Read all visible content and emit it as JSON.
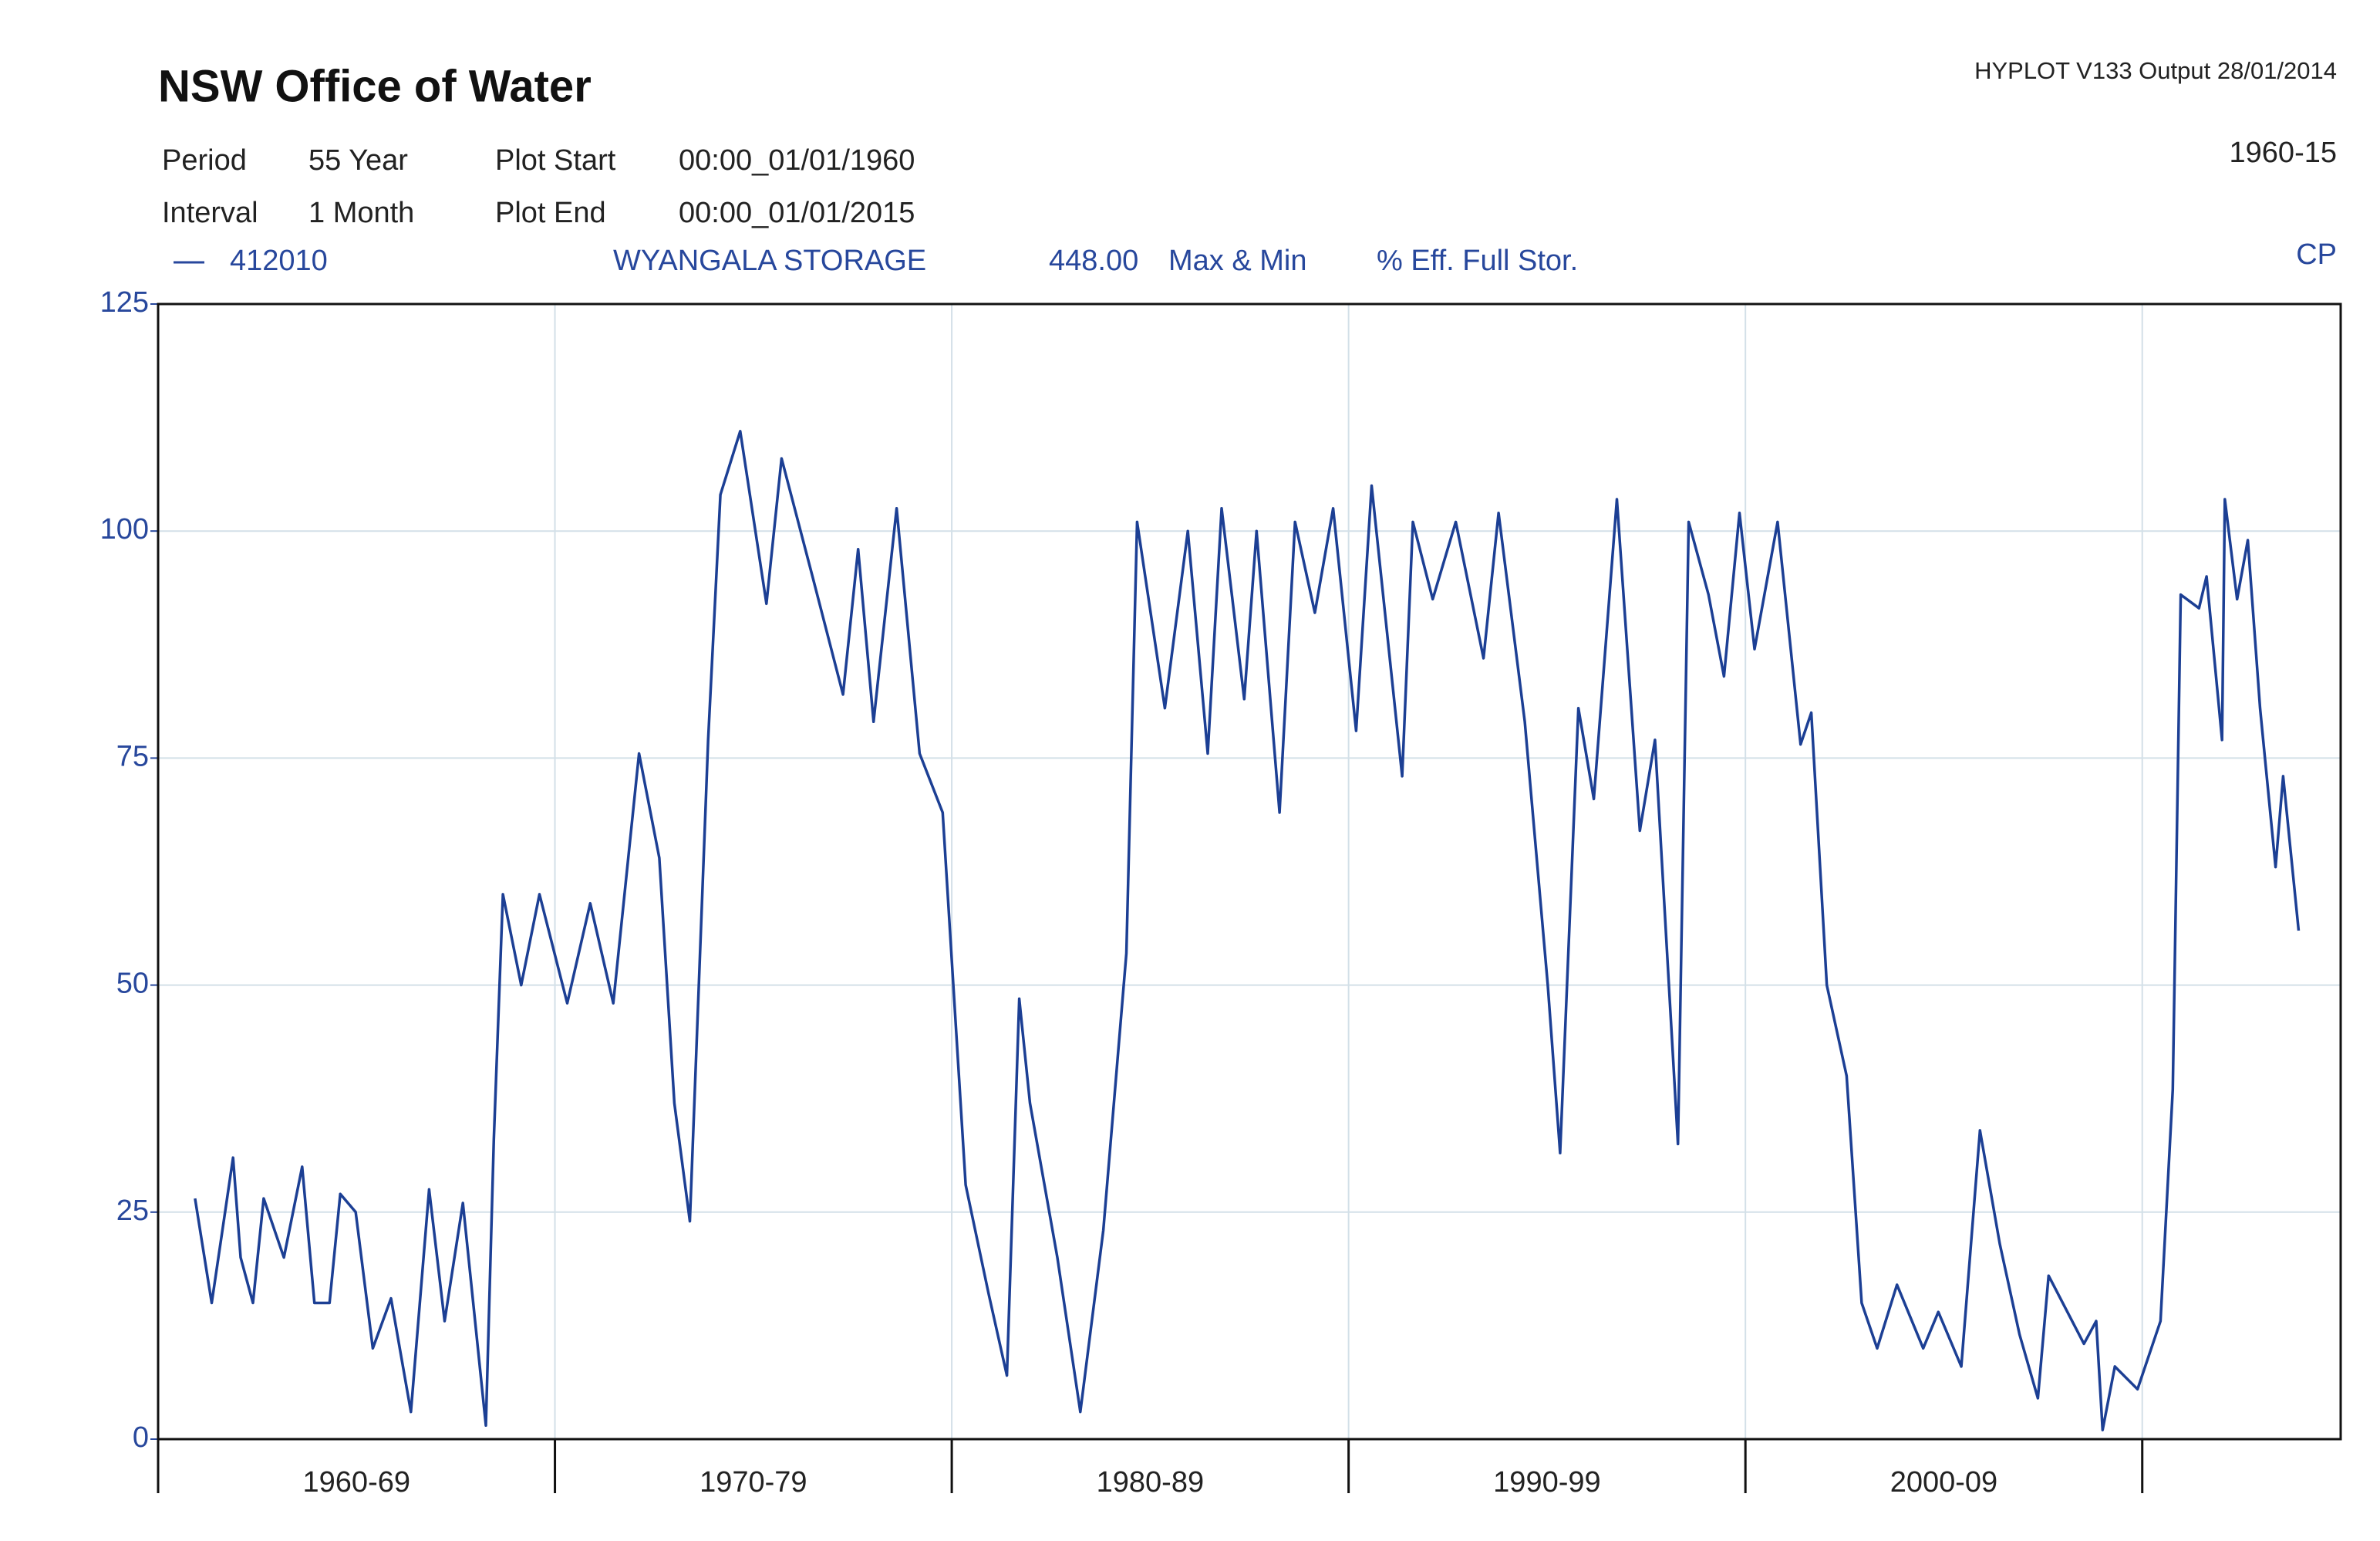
{
  "chart_data": {
    "type": "line",
    "title": "NSW Office of Water",
    "output_note": "HYPLOT V133  Output 28/01/2014",
    "period_code": "1960-15",
    "plot_code": "CP",
    "header": [
      [
        "Period",
        "55 Year",
        "Plot Start",
        "00:00_01/01/1960"
      ],
      [
        "Interval",
        "1 Month",
        "Plot End",
        "00:00_01/01/2015"
      ]
    ],
    "legend_fields": [
      "WYANGALA STORAGE",
      "448.00",
      "Max & Min",
      "% Eff. Full Stor."
    ],
    "x": [
      1960.93,
      1961.35,
      1961.62,
      1961.89,
      1962.08,
      1962.39,
      1962.66,
      1963.17,
      1963.63,
      1963.94,
      1964.32,
      1964.59,
      1964.98,
      1965.41,
      1965.87,
      1966.37,
      1966.83,
      1967.22,
      1967.68,
      1968.26,
      1968.46,
      1968.69,
      1969.15,
      1969.61,
      1970.31,
      1970.89,
      1971.47,
      1972.12,
      1972.63,
      1973.01,
      1973.4,
      1973.86,
      1974.17,
      1974.67,
      1975.33,
      1975.71,
      1976.49,
      1977.26,
      1977.64,
      1978.03,
      1978.61,
      1979.19,
      1979.77,
      1980.35,
      1980.93,
      1981.39,
      1981.7,
      1981.97,
      1982.66,
      1983.24,
      1983.82,
      1984.4,
      1984.67,
      1985.37,
      1985.95,
      1986.45,
      1986.8,
      1987.37,
      1987.68,
      1988.26,
      1988.65,
      1989.15,
      1989.61,
      1990.19,
      1990.58,
      1991.35,
      1991.62,
      1992.12,
      1992.7,
      1993.4,
      1993.78,
      1994.44,
      1995.02,
      1995.33,
      1995.79,
      1996.18,
      1996.76,
      1997.34,
      1997.72,
      1998.3,
      1998.57,
      1999.07,
      1999.46,
      1999.85,
      2000.23,
      2000.81,
      2001.39,
      2001.66,
      2002.05,
      2002.55,
      2002.93,
      2003.32,
      2003.82,
      2004.48,
      2004.86,
      2005.44,
      2005.91,
      2006.41,
      2006.91,
      2007.37,
      2007.64,
      2008.53,
      2008.84,
      2009.0,
      2009.31,
      2009.88,
      2010.46,
      2010.77,
      2010.97,
      2011.43,
      2011.62,
      2012.01,
      2012.08,
      2012.39,
      2012.66,
      2012.97,
      2013.36,
      2013.55,
      2013.94
    ],
    "series": [
      {
        "name": "412010",
        "color": "#1c3f94",
        "values": [
          26.5,
          15,
          23,
          31,
          20,
          15,
          26.5,
          20,
          30,
          15,
          15,
          27,
          25,
          10,
          15.5,
          3,
          27.5,
          13,
          26,
          1.5,
          33,
          60,
          50,
          60,
          48,
          59,
          48,
          75.5,
          64,
          37,
          24,
          77,
          104,
          111,
          92,
          108,
          95,
          82,
          98,
          79,
          102.5,
          75.5,
          69,
          28,
          16,
          7,
          48.5,
          37,
          20,
          3,
          23,
          53.5,
          101,
          80.5,
          100,
          75.5,
          102.5,
          81.5,
          100,
          69,
          101,
          91,
          102.5,
          78,
          105,
          73,
          101,
          92.5,
          101,
          86,
          102,
          79,
          50,
          31.5,
          80.5,
          70.5,
          103.5,
          67,
          77,
          32.5,
          101,
          93,
          84,
          102,
          87,
          101,
          76.5,
          80,
          50,
          40,
          15,
          10,
          17,
          10,
          14,
          8,
          34,
          21.5,
          11.5,
          4.5,
          18,
          10.5,
          13,
          1,
          8,
          5.5,
          13,
          38.5,
          93,
          91.5,
          95,
          77,
          103.5,
          92.5,
          99,
          80.5,
          63,
          73,
          56
        ]
      }
    ],
    "xlim": [
      1960,
      2015
    ],
    "xticks": [
      {
        "value": 1960,
        "label": "1960-69"
      },
      {
        "value": 1970,
        "label": "1970-79"
      },
      {
        "value": 1980,
        "label": "1980-89"
      },
      {
        "value": 1990,
        "label": "1990-99"
      },
      {
        "value": 2000,
        "label": "2000-09"
      },
      {
        "value": 2010,
        "label": null
      }
    ],
    "ylim": [
      0,
      125
    ],
    "yticks": [
      0,
      25,
      50,
      75,
      100,
      125
    ],
    "grid": true
  }
}
